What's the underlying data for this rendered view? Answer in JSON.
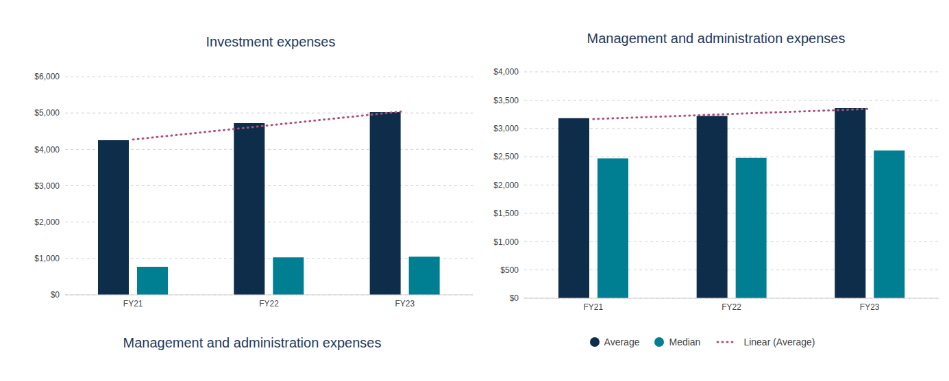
{
  "chart_data": [
    {
      "type": "bar",
      "title": "Investment expenses",
      "annotations": [
        "Management and administration expenses"
      ],
      "categories": [
        "FY21",
        "FY22",
        "FY23"
      ],
      "series": [
        {
          "name": "Average",
          "type": "bar",
          "color": "#0d2d4a",
          "values": [
            4250,
            4720,
            5020
          ]
        },
        {
          "name": "Median",
          "type": "bar",
          "color": "#007e92",
          "values": [
            770,
            1030,
            1050
          ]
        },
        {
          "name": "Linear (Average)",
          "type": "line",
          "color": "#b0507a",
          "line_style": "dotted",
          "values": [
            4270,
            4660,
            5050
          ]
        }
      ],
      "ylim": [
        0,
        6000
      ],
      "yticks": [
        {
          "value": 0,
          "label": "$0"
        },
        {
          "value": 1000,
          "label": "$1,000"
        },
        {
          "value": 2000,
          "label": "$2,000"
        },
        {
          "value": 3000,
          "label": "$3,000"
        },
        {
          "value": 4000,
          "label": "$4,000"
        },
        {
          "value": 5000,
          "label": "$5,000"
        },
        {
          "value": 6000,
          "label": "$6,000"
        }
      ],
      "grid": true
    },
    {
      "type": "bar",
      "title": "Management and administration expenses",
      "categories": [
        "FY21",
        "FY22",
        "FY23"
      ],
      "series": [
        {
          "name": "Average",
          "type": "bar",
          "color": "#0d2d4a",
          "values": [
            3180,
            3220,
            3360
          ]
        },
        {
          "name": "Median",
          "type": "bar",
          "color": "#007e92",
          "values": [
            2470,
            2480,
            2610
          ]
        },
        {
          "name": "Linear (Average)",
          "type": "line",
          "color": "#b0507a",
          "line_style": "dotted",
          "values": [
            3165,
            3255,
            3345
          ]
        }
      ],
      "ylim": [
        0,
        4000
      ],
      "yticks": [
        {
          "value": 0,
          "label": "$0"
        },
        {
          "value": 500,
          "label": "$500"
        },
        {
          "value": 1000,
          "label": "$1,000"
        },
        {
          "value": 1500,
          "label": "$1,500"
        },
        {
          "value": 2000,
          "label": "$2,000"
        },
        {
          "value": 2500,
          "label": "$2,500"
        },
        {
          "value": 3000,
          "label": "$3,000"
        },
        {
          "value": 3500,
          "label": "$3,500"
        },
        {
          "value": 4000,
          "label": "$4,000"
        }
      ],
      "grid": true,
      "legend": "bottom"
    }
  ]
}
